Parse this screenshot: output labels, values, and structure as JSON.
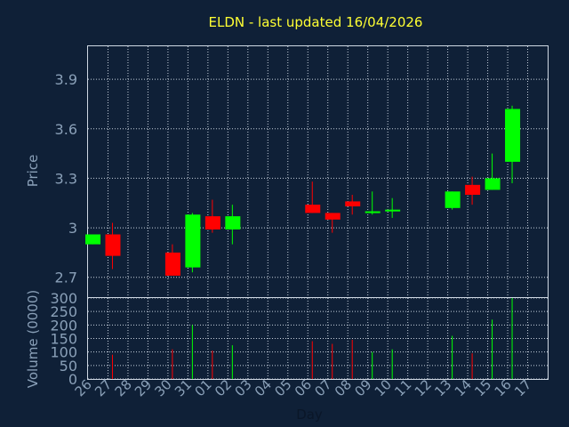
{
  "chart_data": [
    {
      "type": "candlestick",
      "title": "ELDN - last updated 16/04/2026",
      "ylabel": "Price",
      "ylim": [
        2.58,
        4.1
      ],
      "yticks": [
        "2.7",
        "3",
        "3.3",
        "3.6",
        "3.9"
      ],
      "grid": true,
      "colors": {
        "up": "#00ff00",
        "down": "#ff0000"
      },
      "candles": [
        {
          "day": "26",
          "open": 2.9,
          "close": 2.96,
          "high": 2.96,
          "low": 2.9
        },
        {
          "day": "27",
          "open": 2.96,
          "close": 2.83,
          "high": 3.03,
          "low": 2.75
        },
        {
          "day": "30",
          "open": 2.85,
          "close": 2.71,
          "high": 2.9,
          "low": 2.71
        },
        {
          "day": "31",
          "open": 2.76,
          "close": 3.08,
          "high": 3.09,
          "low": 2.73
        },
        {
          "day": "01",
          "open": 3.07,
          "close": 2.99,
          "high": 3.17,
          "low": 2.97
        },
        {
          "day": "02",
          "open": 2.99,
          "close": 3.07,
          "high": 3.14,
          "low": 2.9
        },
        {
          "day": "06",
          "open": 3.14,
          "close": 3.09,
          "high": 3.28,
          "low": 3.09
        },
        {
          "day": "07",
          "open": 3.09,
          "close": 3.05,
          "high": 3.09,
          "low": 2.97
        },
        {
          "day": "08",
          "open": 3.16,
          "close": 3.13,
          "high": 3.2,
          "low": 3.08
        },
        {
          "day": "09",
          "open": 3.09,
          "close": 3.1,
          "high": 3.22,
          "low": 3.08
        },
        {
          "day": "10",
          "open": 3.1,
          "close": 3.11,
          "high": 3.18,
          "low": 3.06
        },
        {
          "day": "13",
          "open": 3.12,
          "close": 3.22,
          "high": 3.22,
          "low": 3.11
        },
        {
          "day": "14",
          "open": 3.26,
          "close": 3.2,
          "high": 3.31,
          "low": 3.14
        },
        {
          "day": "15",
          "open": 3.23,
          "close": 3.3,
          "high": 3.45,
          "low": 3.23
        },
        {
          "day": "16",
          "open": 3.4,
          "close": 3.72,
          "high": 3.74,
          "low": 3.27
        }
      ]
    },
    {
      "type": "bar",
      "ylabel": "Volume (0000)",
      "xlabel": "Day",
      "ylim": [
        0,
        300
      ],
      "yticks": [
        "0",
        "50",
        "100",
        "150",
        "200",
        "250",
        "300"
      ],
      "x_tick_labels": [
        "26",
        "27",
        "28",
        "29",
        "30",
        "31",
        "01",
        "02",
        "03",
        "04",
        "05",
        "06",
        "07",
        "08",
        "09",
        "10",
        "11",
        "12",
        "13",
        "14",
        "15",
        "16",
        "17"
      ],
      "bars": [
        {
          "day": "27",
          "value": 90,
          "dir": "down"
        },
        {
          "day": "30",
          "value": 110,
          "dir": "down"
        },
        {
          "day": "31",
          "value": 200,
          "dir": "up"
        },
        {
          "day": "01",
          "value": 105,
          "dir": "down"
        },
        {
          "day": "02",
          "value": 125,
          "dir": "up"
        },
        {
          "day": "06",
          "value": 140,
          "dir": "down"
        },
        {
          "day": "07",
          "value": 130,
          "dir": "down"
        },
        {
          "day": "08",
          "value": 145,
          "dir": "down"
        },
        {
          "day": "09",
          "value": 100,
          "dir": "up"
        },
        {
          "day": "10",
          "value": 110,
          "dir": "up"
        },
        {
          "day": "13",
          "value": 160,
          "dir": "up"
        },
        {
          "day": "14",
          "value": 95,
          "dir": "down"
        },
        {
          "day": "15",
          "value": 220,
          "dir": "up"
        },
        {
          "day": "16",
          "value": 300,
          "dir": "up"
        }
      ]
    }
  ]
}
